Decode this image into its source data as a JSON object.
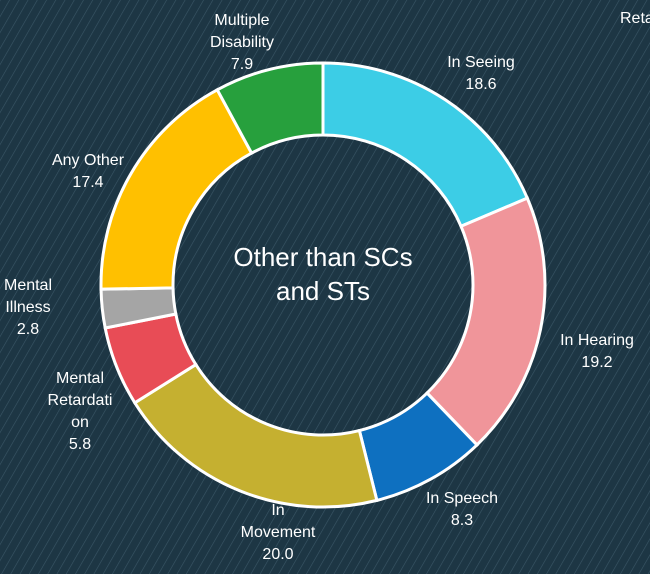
{
  "chart_data": {
    "type": "donut",
    "center_label": "Other than SCs and STs",
    "annotation": "Reta",
    "categories": [
      "In Seeing",
      "In Hearing",
      "In Speech",
      "In Movement",
      "Mental Retardation",
      "Mental Illness",
      "Any Other",
      "Multiple Disability"
    ],
    "values": [
      18.6,
      19.2,
      8.3,
      20.0,
      5.8,
      2.8,
      17.4,
      7.9
    ],
    "value_labels": [
      "18.6",
      "19.2",
      "8.3",
      "20.0",
      "5.8",
      "2.8",
      "17.4",
      "7.9"
    ],
    "colors": [
      "#3ccde6",
      "#f0959a",
      "#0e70c0",
      "#c5b030",
      "#e84c56",
      "#a5a5a5",
      "#ffc000",
      "#27a03d"
    ]
  }
}
